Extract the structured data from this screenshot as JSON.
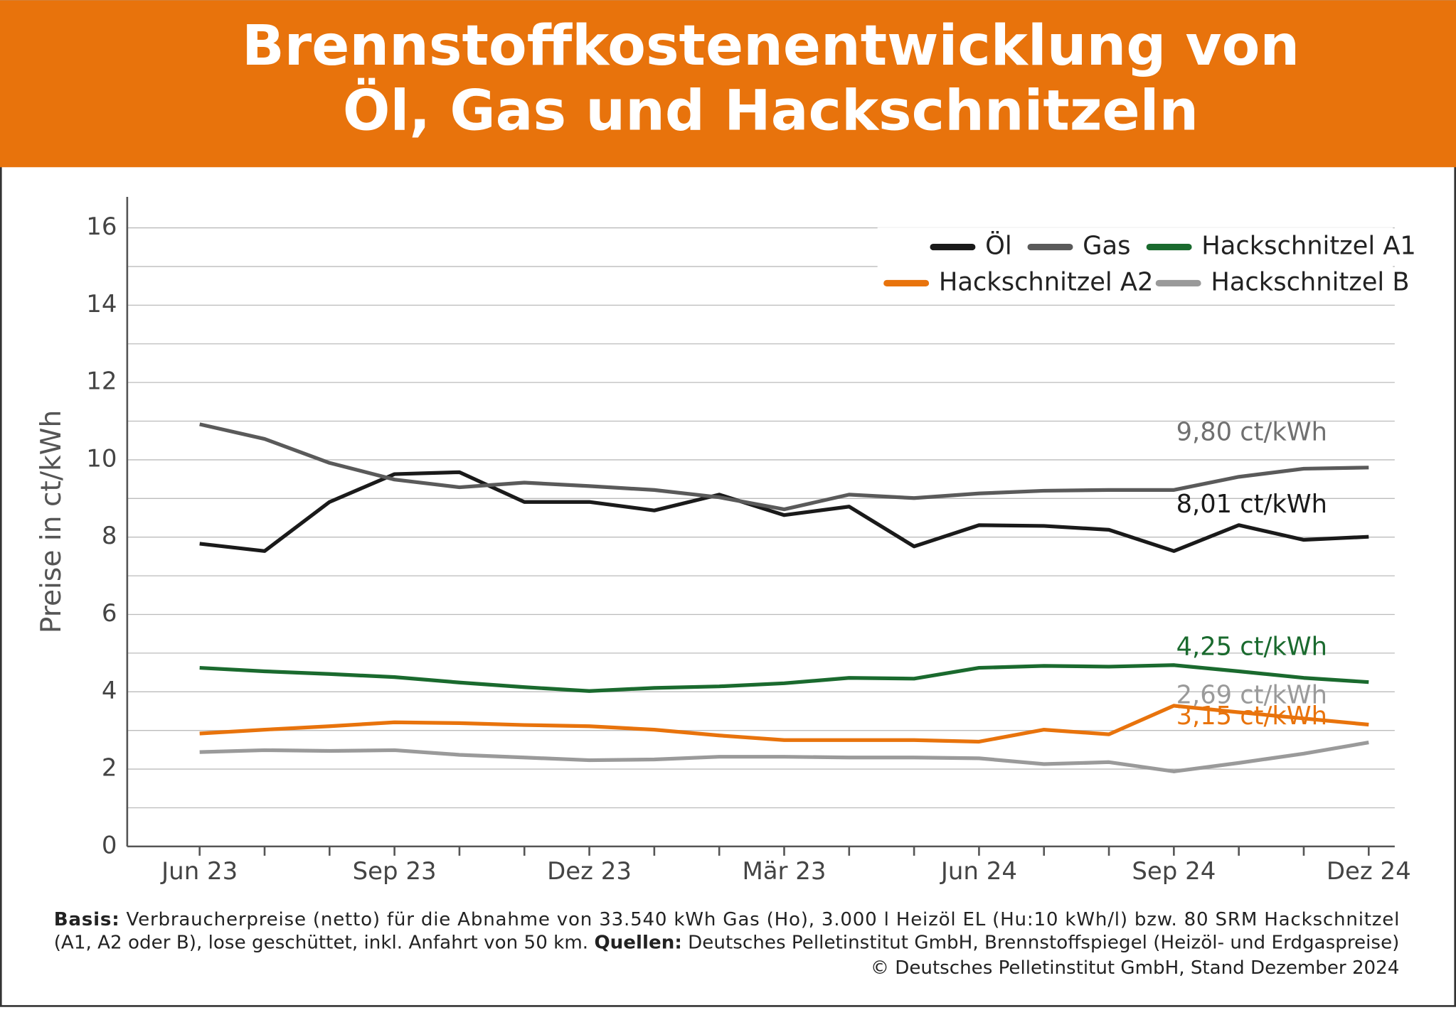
{
  "chart_data": {
    "type": "line",
    "title": [
      "Brennstoffkostenentwicklung von",
      "Öl, Gas und Hackschnitzeln"
    ],
    "y_label": "Preise in ct/kWh",
    "categories": [
      "Jun 23",
      null,
      null,
      "Sep 23",
      null,
      null,
      "Dez 23",
      null,
      null,
      "Mär 23",
      null,
      null,
      "Jun 24",
      null,
      null,
      "Sep 24",
      null,
      null,
      "Dez 24"
    ],
    "ylim": [
      0,
      16.8
    ],
    "yticks": [
      0,
      2,
      4,
      6,
      8,
      10,
      12,
      14,
      16
    ],
    "minor_yticks": [
      1,
      3,
      5,
      7,
      9,
      11,
      13,
      15
    ],
    "grid": true,
    "legend": "top-right",
    "series": [
      {
        "name": "Öl",
        "color": "#1a1a1a",
        "values": [
          7.83,
          7.64,
          8.91,
          9.63,
          9.68,
          8.91,
          8.91,
          8.69,
          9.1,
          8.57,
          8.79,
          7.76,
          8.31,
          8.29,
          8.19,
          7.64,
          8.31,
          7.93,
          8.01
        ],
        "value_labels": [
          null,
          null,
          null,
          null,
          null,
          null,
          null,
          null,
          null,
          null,
          null,
          null,
          null,
          null,
          null,
          null,
          null,
          null,
          "8,01 ct/kWh"
        ],
        "label_color": "#1a1a1a"
      },
      {
        "name": "Gas",
        "color": "#5a5a5a",
        "values": [
          10.92,
          10.54,
          9.92,
          9.49,
          9.29,
          9.41,
          9.32,
          9.22,
          9.03,
          8.72,
          9.1,
          9.01,
          9.13,
          9.2,
          9.22,
          9.22,
          9.56,
          9.77,
          9.8
        ],
        "value_labels": [
          null,
          null,
          null,
          null,
          null,
          null,
          null,
          null,
          null,
          null,
          null,
          null,
          null,
          null,
          null,
          null,
          null,
          null,
          "9,80 ct/kWh"
        ],
        "label_color": "#707070"
      },
      {
        "name": "Hackschnitzel A1",
        "color": "#1a6a2e",
        "values": [
          4.62,
          4.53,
          4.46,
          4.38,
          4.24,
          4.12,
          4.02,
          4.1,
          4.14,
          4.22,
          4.36,
          4.34,
          4.62,
          4.67,
          4.65,
          4.69,
          4.53,
          4.36,
          4.25
        ],
        "value_labels": [
          null,
          null,
          null,
          null,
          null,
          null,
          null,
          null,
          null,
          null,
          null,
          null,
          null,
          null,
          null,
          null,
          null,
          null,
          "4,25 ct/kWh"
        ],
        "label_color": "#1a6a2e"
      },
      {
        "name": "Hackschnitzel A2",
        "color": "#e8730c",
        "values": [
          2.92,
          3.02,
          3.11,
          3.21,
          3.19,
          3.14,
          3.11,
          3.02,
          2.87,
          2.75,
          2.75,
          2.75,
          2.71,
          3.02,
          2.9,
          3.64,
          3.47,
          3.31,
          3.15
        ],
        "value_labels": [
          null,
          null,
          null,
          null,
          null,
          null,
          null,
          null,
          null,
          null,
          null,
          null,
          null,
          null,
          null,
          null,
          null,
          null,
          "3,15 ct/kWh"
        ],
        "label_color": "#e8730c"
      },
      {
        "name": "Hackschnitzel B",
        "color": "#9a9a9a",
        "values": [
          2.44,
          2.49,
          2.47,
          2.49,
          2.37,
          2.3,
          2.23,
          2.25,
          2.32,
          2.32,
          2.3,
          2.3,
          2.28,
          2.13,
          2.18,
          1.94,
          2.16,
          2.4,
          2.69
        ],
        "value_labels": [
          null,
          null,
          null,
          null,
          null,
          null,
          null,
          null,
          null,
          null,
          null,
          null,
          null,
          null,
          null,
          null,
          null,
          null,
          "2,69 ct/kWh"
        ],
        "label_color": "#9a9a9a"
      }
    ],
    "footer": [
      [
        {
          "text": "Basis:",
          "bold": true
        },
        {
          "text": " Verbraucherpreise (netto) für die Abnahme von 33.540 kWh Gas (Ho), 3.000 l Heizöl EL (Hu:10 kWh/l) bzw. 80 SRM Hackschnitzel",
          "bold": false
        }
      ],
      [
        {
          "text": "(A1, A2 oder B), lose geschüttet, inkl. Anfahrt von 50 km. ",
          "bold": false
        },
        {
          "text": "Quellen:",
          "bold": true
        },
        {
          "text": " Deutsches Pelletinstitut GmbH, Brennstoffspiegel (Heizöl- und Erdgaspreise)",
          "bold": false
        }
      ],
      [
        {
          "text": "© Deutsches Pelletinstitut GmbH, Stand Dezember 2024",
          "bold": false
        }
      ]
    ]
  }
}
